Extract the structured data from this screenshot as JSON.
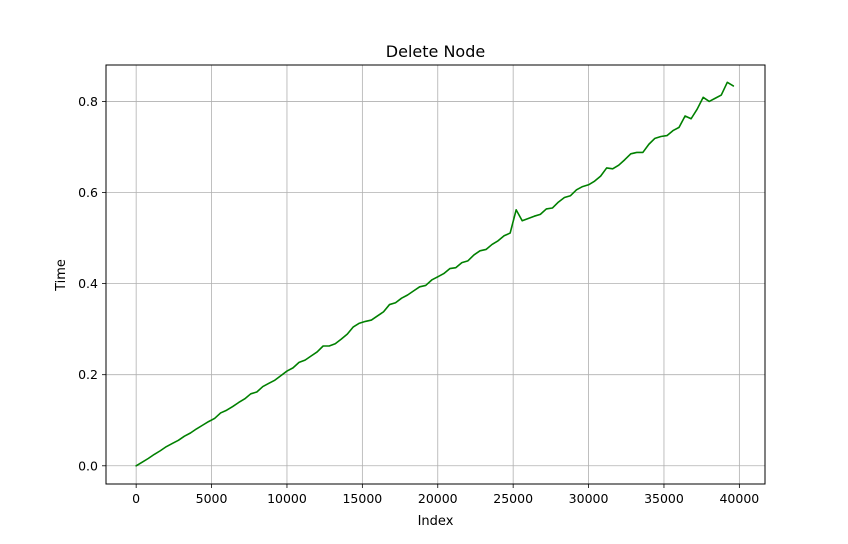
{
  "chart_data": {
    "type": "line",
    "title": "Delete Node",
    "xlabel": "Index",
    "ylabel": "Time",
    "xlim": [
      -2000,
      41700
    ],
    "ylim": [
      -0.04,
      0.88
    ],
    "xticks": [
      0,
      5000,
      10000,
      15000,
      20000,
      25000,
      30000,
      35000,
      40000
    ],
    "xtick_labels": [
      "0",
      "5000",
      "10000",
      "15000",
      "20000",
      "25000",
      "30000",
      "35000",
      "40000"
    ],
    "yticks": [
      0.0,
      0.2,
      0.4,
      0.6,
      0.8
    ],
    "ytick_labels": [
      "0.0",
      "0.2",
      "0.4",
      "0.6",
      "0.8"
    ],
    "grid": true,
    "legend": "none",
    "series": [
      {
        "color": "#008000",
        "x": [
          0,
          400,
          800,
          1200,
          1600,
          2000,
          2400,
          2800,
          3200,
          3600,
          4000,
          4400,
          4800,
          5200,
          5600,
          6000,
          6400,
          6800,
          7200,
          7600,
          8000,
          8400,
          8800,
          9200,
          9600,
          10000,
          10400,
          10800,
          11200,
          11600,
          12000,
          12400,
          12800,
          13200,
          13600,
          14000,
          14400,
          14800,
          15200,
          15600,
          16000,
          16400,
          16800,
          17200,
          17600,
          18000,
          18400,
          18800,
          19200,
          19600,
          20000,
          20400,
          20800,
          21200,
          21600,
          22000,
          22400,
          22800,
          23200,
          23600,
          24000,
          24400,
          24800,
          25200,
          25600,
          26000,
          26400,
          26800,
          27200,
          27600,
          28000,
          28400,
          28800,
          29200,
          29600,
          30000,
          30400,
          30800,
          31200,
          31600,
          32000,
          32400,
          32800,
          33200,
          33600,
          34000,
          34400,
          34800,
          35200,
          35600,
          36000,
          36400,
          36800,
          37200,
          37600,
          38000,
          38400,
          38800,
          39200,
          39600
        ],
        "y": [
          0.0,
          0.008,
          0.016,
          0.025,
          0.033,
          0.042,
          0.049,
          0.056,
          0.065,
          0.072,
          0.081,
          0.089,
          0.097,
          0.104,
          0.116,
          0.122,
          0.13,
          0.139,
          0.147,
          0.158,
          0.162,
          0.174,
          0.181,
          0.188,
          0.198,
          0.208,
          0.215,
          0.227,
          0.232,
          0.241,
          0.25,
          0.263,
          0.263,
          0.268,
          0.278,
          0.289,
          0.305,
          0.313,
          0.317,
          0.32,
          0.329,
          0.338,
          0.354,
          0.358,
          0.368,
          0.375,
          0.384,
          0.393,
          0.396,
          0.408,
          0.415,
          0.422,
          0.433,
          0.435,
          0.446,
          0.45,
          0.463,
          0.472,
          0.475,
          0.486,
          0.494,
          0.505,
          0.511,
          0.562,
          0.538,
          0.543,
          0.548,
          0.552,
          0.564,
          0.566,
          0.579,
          0.589,
          0.593,
          0.606,
          0.613,
          0.617,
          0.625,
          0.636,
          0.654,
          0.652,
          0.66,
          0.672,
          0.685,
          0.688,
          0.688,
          0.706,
          0.719,
          0.723,
          0.725,
          0.736,
          0.743,
          0.768,
          0.762,
          0.783,
          0.809,
          0.8,
          0.807,
          0.814,
          0.842,
          0.834
        ]
      }
    ]
  }
}
